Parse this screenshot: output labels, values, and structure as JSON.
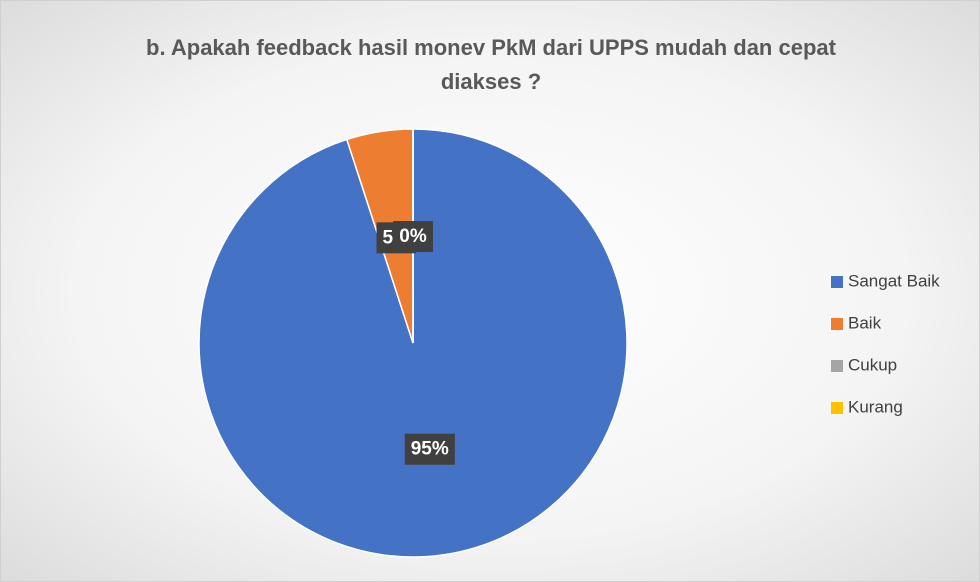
{
  "chart_data": {
    "type": "pie",
    "title": "b. Apakah feedback hasil monev PkM dari UPPS mudah dan cepat diakses ?",
    "categories": [
      "Sangat Baik",
      "Baik",
      "Cukup",
      "Kurang"
    ],
    "values": [
      95,
      5,
      0,
      0
    ],
    "value_labels": [
      "95%",
      "5%",
      "0%",
      "0%"
    ],
    "colors": [
      "#4472c4",
      "#ed7d31",
      "#a5a5a5",
      "#ffc000"
    ],
    "legend": "right"
  }
}
